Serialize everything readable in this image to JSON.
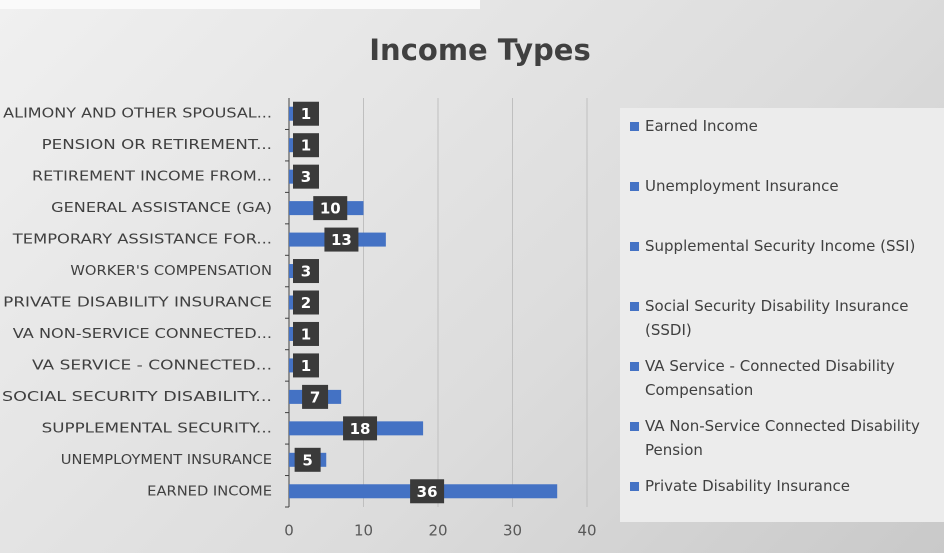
{
  "chart_data": {
    "type": "bar",
    "orientation": "horizontal",
    "title": "Income Types",
    "categories": [
      "EARNED INCOME",
      "UNEMPLOYMENT INSURANCE",
      "SUPPLEMENTAL SECURITY...",
      "SOCIAL SECURITY DISABILITY...",
      "VA SERVICE - CONNECTED...",
      "VA NON-SERVICE CONNECTED...",
      "PRIVATE DISABILITY INSURANCE",
      "WORKER'S COMPENSATION",
      "TEMPORARY ASSISTANCE FOR...",
      "GENERAL ASSISTANCE (GA)",
      "RETIREMENT INCOME FROM...",
      "PENSION OR RETIREMENT...",
      "ALIMONY AND OTHER SPOUSAL..."
    ],
    "values": [
      36,
      5,
      18,
      7,
      1,
      1,
      2,
      3,
      13,
      10,
      3,
      1,
      1
    ],
    "color": "#4472c4",
    "xlim": [
      0,
      40
    ],
    "xticks": [
      0,
      10,
      20,
      30,
      40
    ],
    "grid": true,
    "legend": [
      "Earned Income",
      "Unemployment Insurance",
      "Supplemental Security Income (SSI)",
      "Social Security Disability Insurance (SSDI)",
      "VA Service - Connected Disability Compensation",
      "VA Non-Service Connected Disability Pension",
      "Private Disability Insurance"
    ]
  }
}
